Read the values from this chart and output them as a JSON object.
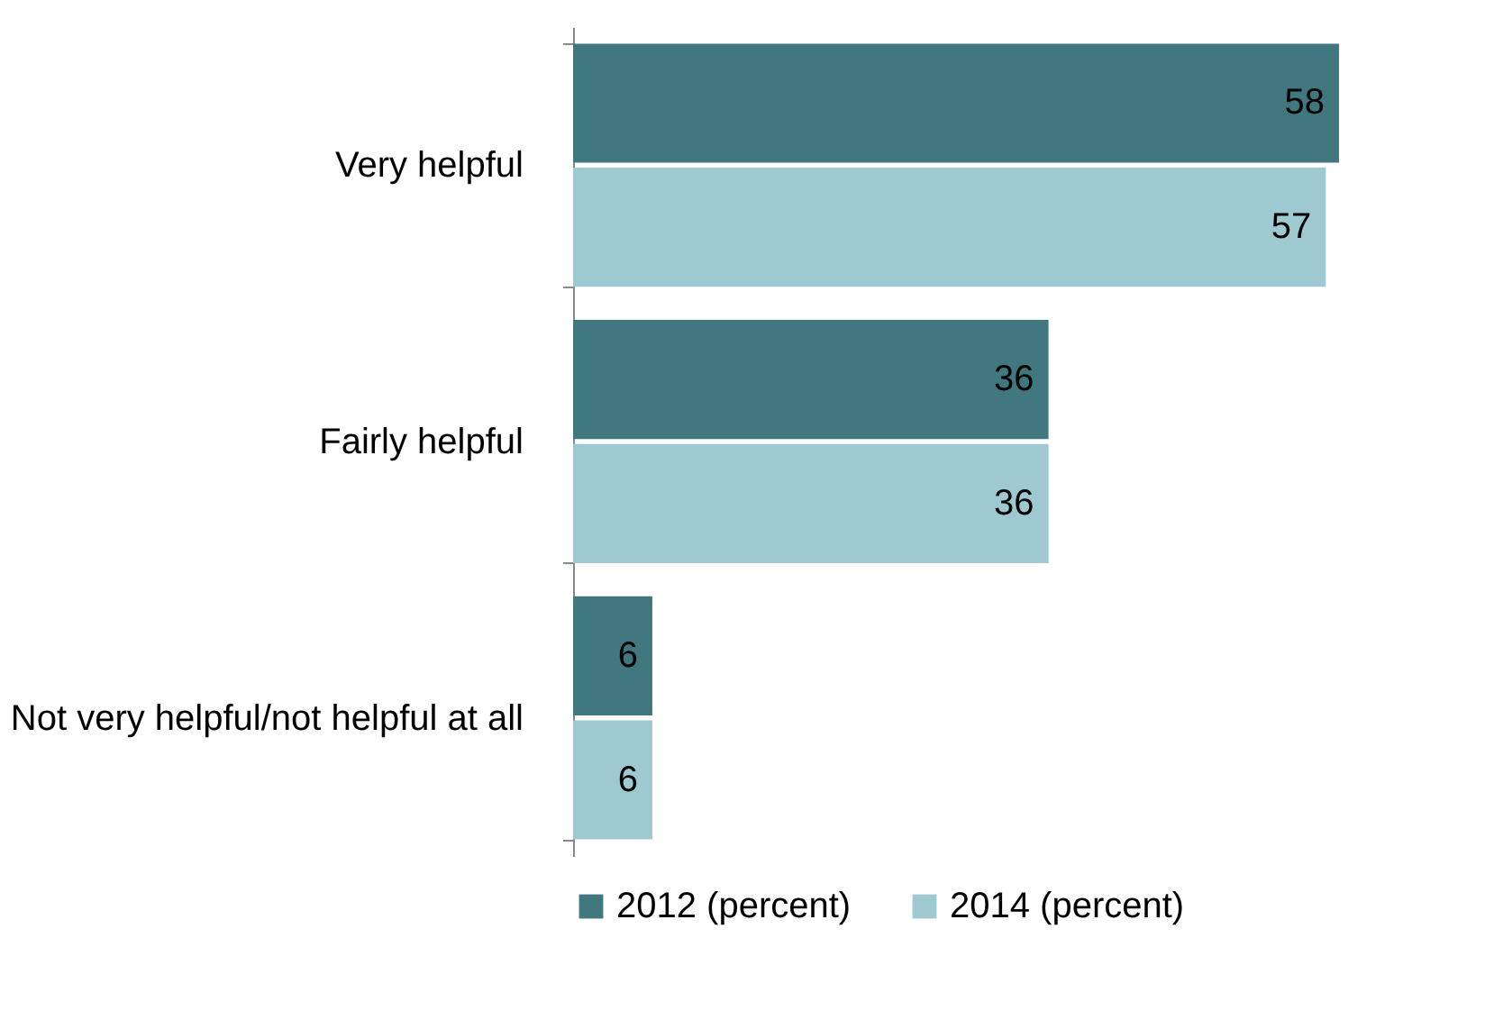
{
  "chart_data": {
    "type": "bar",
    "orientation": "horizontal",
    "categories": [
      "Very helpful",
      "Fairly helpful",
      "Not very helpful/not helpful at all"
    ],
    "series": [
      {
        "name": "2012 (percent)",
        "color": "#41787f",
        "values": [
          58,
          36,
          6
        ]
      },
      {
        "name": "2014 (percent)",
        "color": "#9fc9d0",
        "values": [
          57,
          36,
          6
        ]
      }
    ],
    "data_labels": true,
    "legend": "bottom",
    "grid": false
  }
}
